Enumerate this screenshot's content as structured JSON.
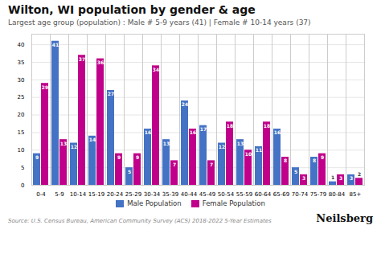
{
  "chart_data": {
    "type": "bar",
    "title": "Wilton, WI population by gender & age",
    "subtitle": "Largest age group (population) : Male # 5-9 years (41) | Female # 10-14 years (37)",
    "annotations": [
      "Source: U.S. Census Bureau, American Community Survey (ACS) 2018-2022 5-Year Estimates",
      "Neilsberg"
    ],
    "categories": [
      "0-4",
      "5-9",
      "10-14",
      "15-19",
      "20-24",
      "25-29",
      "30-34",
      "35-39",
      "40-44",
      "45-49",
      "50-54",
      "55-59",
      "60-64",
      "65-69",
      "70-74",
      "75-79",
      "80-84",
      "85+"
    ],
    "series": [
      {
        "name": "Male Population",
        "color": "#4472C4",
        "values": [
          9,
          41,
          12,
          14,
          27,
          5,
          16,
          13,
          24,
          17,
          12,
          13,
          11,
          16,
          5,
          8,
          1,
          3
        ]
      },
      {
        "name": "Female Population",
        "color": "#C0008A",
        "values": [
          29,
          13,
          37,
          36,
          9,
          9,
          34,
          7,
          16,
          7,
          18,
          10,
          18,
          8,
          3,
          9,
          3,
          2
        ]
      }
    ],
    "ylim": [
      0,
      43
    ],
    "yticks": [
      0,
      5,
      10,
      15,
      20,
      25,
      30,
      35,
      40
    ],
    "grid": true,
    "data_labels": true,
    "legend": "bottom"
  }
}
